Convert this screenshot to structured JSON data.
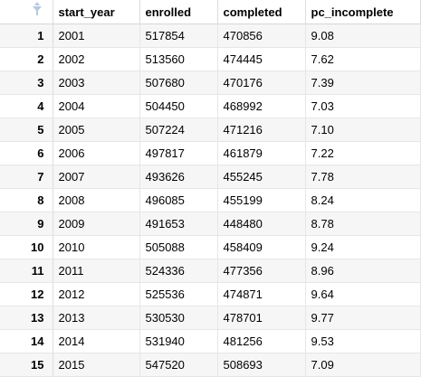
{
  "table": {
    "columns": [
      "start_year",
      "enrolled",
      "completed",
      "pc_incomplete"
    ],
    "rows": [
      {
        "index": "1",
        "start_year": "2001",
        "enrolled": "517854",
        "completed": "470856",
        "pc_incomplete": "9.08"
      },
      {
        "index": "2",
        "start_year": "2002",
        "enrolled": "513560",
        "completed": "474445",
        "pc_incomplete": "7.62"
      },
      {
        "index": "3",
        "start_year": "2003",
        "enrolled": "507680",
        "completed": "470176",
        "pc_incomplete": "7.39"
      },
      {
        "index": "4",
        "start_year": "2004",
        "enrolled": "504450",
        "completed": "468992",
        "pc_incomplete": "7.03"
      },
      {
        "index": "5",
        "start_year": "2005",
        "enrolled": "507224",
        "completed": "471216",
        "pc_incomplete": "7.10"
      },
      {
        "index": "6",
        "start_year": "2006",
        "enrolled": "497817",
        "completed": "461879",
        "pc_incomplete": "7.22"
      },
      {
        "index": "7",
        "start_year": "2007",
        "enrolled": "493626",
        "completed": "455245",
        "pc_incomplete": "7.78"
      },
      {
        "index": "8",
        "start_year": "2008",
        "enrolled": "496085",
        "completed": "455199",
        "pc_incomplete": "8.24"
      },
      {
        "index": "9",
        "start_year": "2009",
        "enrolled": "491653",
        "completed": "448480",
        "pc_incomplete": "8.78"
      },
      {
        "index": "10",
        "start_year": "2010",
        "enrolled": "505088",
        "completed": "458409",
        "pc_incomplete": "9.24"
      },
      {
        "index": "11",
        "start_year": "2011",
        "enrolled": "524336",
        "completed": "477356",
        "pc_incomplete": "8.96"
      },
      {
        "index": "12",
        "start_year": "2012",
        "enrolled": "525536",
        "completed": "474871",
        "pc_incomplete": "9.64"
      },
      {
        "index": "13",
        "start_year": "2013",
        "enrolled": "530530",
        "completed": "478701",
        "pc_incomplete": "9.77"
      },
      {
        "index": "14",
        "start_year": "2014",
        "enrolled": "531940",
        "completed": "481256",
        "pc_incomplete": "9.53"
      },
      {
        "index": "15",
        "start_year": "2015",
        "enrolled": "547520",
        "completed": "508693",
        "pc_incomplete": "7.09"
      }
    ]
  },
  "icons": {
    "index_header": "sort-filter-icon"
  }
}
